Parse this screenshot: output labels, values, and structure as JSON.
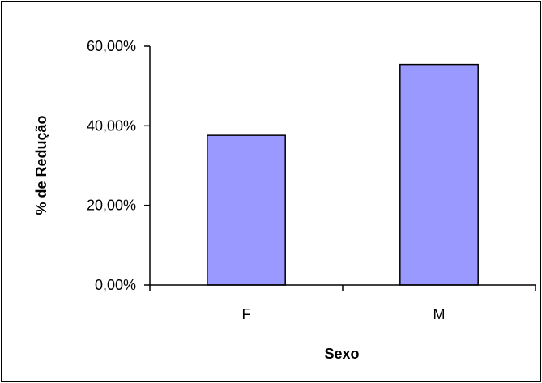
{
  "chart_data": {
    "type": "bar",
    "categories": [
      "F",
      "M"
    ],
    "values": [
      37.6,
      55.4
    ],
    "xlabel": "Sexo",
    "ylabel": "% de Redução",
    "ylim": [
      0,
      60
    ],
    "yticks": [
      0,
      20,
      40,
      60
    ],
    "ytick_labels": [
      "0,00%",
      "20,00%",
      "40,00%",
      "60,00%"
    ],
    "grid": false,
    "legend": "none",
    "bar_color": "#9999ff",
    "bar_edge_color": "#000000"
  }
}
